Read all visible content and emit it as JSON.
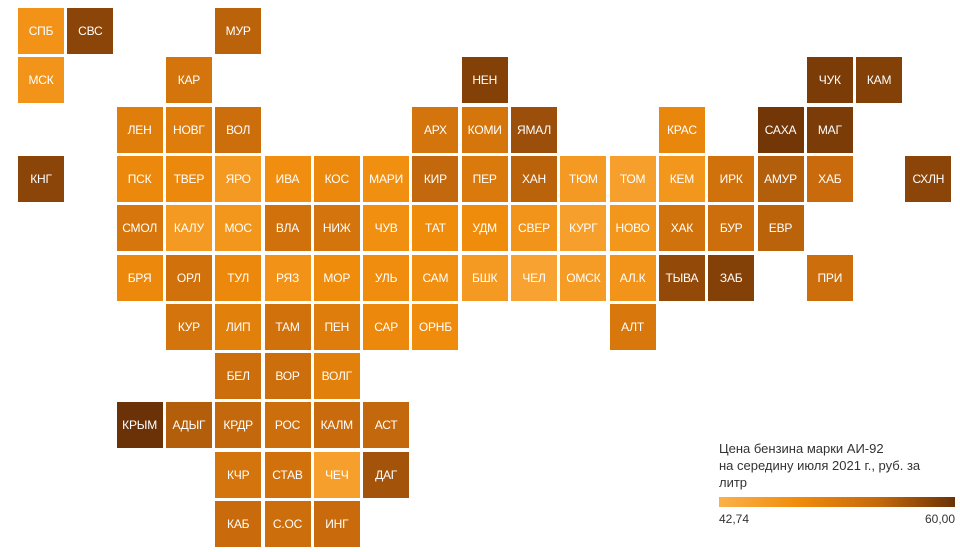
{
  "chart_data": {
    "type": "tile-grid-map",
    "value_label": "Цена бензина марки АИ-92 на середину июля 2021 г., руб. за литр",
    "scale": {
      "min": 42.74,
      "max": 60.0,
      "min_label": "42,74",
      "max_label": "60,00",
      "colors": [
        "#fbb149",
        "#f08c0c",
        "#c76a0c",
        "#6b3207"
      ]
    },
    "regions": [
      {
        "label": "СПБ",
        "col": 0,
        "row": 0,
        "value": 47.5
      },
      {
        "label": "СВС",
        "col": 1,
        "row": 0,
        "value": 58.0
      },
      {
        "label": "МУР",
        "col": 4,
        "row": 0,
        "value": 55.0
      },
      {
        "label": "МСК",
        "col": 0,
        "row": 1,
        "value": 47.3
      },
      {
        "label": "КАР",
        "col": 3,
        "row": 1,
        "value": 52.5
      },
      {
        "label": "НЕН",
        "col": 9,
        "row": 1,
        "value": 58.5
      },
      {
        "label": "ЧУК",
        "col": 16,
        "row": 1,
        "value": 59.0
      },
      {
        "label": "КАМ",
        "col": 17,
        "row": 1,
        "value": 58.5
      },
      {
        "label": "ЛЕН",
        "col": 2,
        "row": 2,
        "value": 50.8
      },
      {
        "label": "НОВГ",
        "col": 3,
        "row": 2,
        "value": 51.0
      },
      {
        "label": "ВОЛ",
        "col": 4,
        "row": 2,
        "value": 53.5
      },
      {
        "label": "АРХ",
        "col": 8,
        "row": 2,
        "value": 52.5
      },
      {
        "label": "КОМИ",
        "col": 9,
        "row": 2,
        "value": 52.3
      },
      {
        "label": "ЯМАЛ",
        "col": 10,
        "row": 2,
        "value": 57.0
      },
      {
        "label": "КРАС",
        "col": 13,
        "row": 2,
        "value": 49.5
      },
      {
        "label": "САХА",
        "col": 15,
        "row": 2,
        "value": 59.5
      },
      {
        "label": "МАГ",
        "col": 16,
        "row": 2,
        "value": 59.0
      },
      {
        "label": "КНГ",
        "col": 0,
        "row": 3,
        "value": 58.0
      },
      {
        "label": "ПСК",
        "col": 2,
        "row": 3,
        "value": 49.0
      },
      {
        "label": "ТВЕР",
        "col": 3,
        "row": 3,
        "value": 49.0
      },
      {
        "label": "ЯРО",
        "col": 4,
        "row": 3,
        "value": 46.5
      },
      {
        "label": "ИВА",
        "col": 5,
        "row": 3,
        "value": 48.2
      },
      {
        "label": "КОС",
        "col": 6,
        "row": 3,
        "value": 49.0
      },
      {
        "label": "МАРИ",
        "col": 7,
        "row": 3,
        "value": 48.0
      },
      {
        "label": "КИР",
        "col": 8,
        "row": 3,
        "value": 54.5
      },
      {
        "label": "ПЕР",
        "col": 9,
        "row": 3,
        "value": 51.5
      },
      {
        "label": "ХАН",
        "col": 10,
        "row": 3,
        "value": 55.0
      },
      {
        "label": "ТЮМ",
        "col": 11,
        "row": 3,
        "value": 46.3
      },
      {
        "label": "ТОМ",
        "col": 12,
        "row": 3,
        "value": 45.5
      },
      {
        "label": "КЕМ",
        "col": 13,
        "row": 3,
        "value": 47.0
      },
      {
        "label": "ИРК",
        "col": 14,
        "row": 3,
        "value": 53.0
      },
      {
        "label": "АМУР",
        "col": 15,
        "row": 3,
        "value": 55.5
      },
      {
        "label": "ХАБ",
        "col": 16,
        "row": 3,
        "value": 54.0
      },
      {
        "label": "СХЛН",
        "col": 18,
        "row": 3,
        "value": 58.0
      },
      {
        "label": "СМОЛ",
        "col": 2,
        "row": 4,
        "value": 52.2
      },
      {
        "label": "КАЛУ",
        "col": 3,
        "row": 4,
        "value": 46.5
      },
      {
        "label": "МОС",
        "col": 4,
        "row": 4,
        "value": 47.0
      },
      {
        "label": "ВЛА",
        "col": 5,
        "row": 4,
        "value": 53.0
      },
      {
        "label": "НИЖ",
        "col": 6,
        "row": 4,
        "value": 52.5
      },
      {
        "label": "ЧУВ",
        "col": 7,
        "row": 4,
        "value": 48.0
      },
      {
        "label": "ТАТ",
        "col": 8,
        "row": 4,
        "value": 48.5
      },
      {
        "label": "УДМ",
        "col": 9,
        "row": 4,
        "value": 48.5
      },
      {
        "label": "СВЕР",
        "col": 10,
        "row": 4,
        "value": 47.2
      },
      {
        "label": "КУРГ",
        "col": 11,
        "row": 4,
        "value": 45.5
      },
      {
        "label": "НОВО",
        "col": 12,
        "row": 4,
        "value": 47.0
      },
      {
        "label": "ХАК",
        "col": 13,
        "row": 4,
        "value": 52.8
      },
      {
        "label": "БУР",
        "col": 14,
        "row": 4,
        "value": 53.5
      },
      {
        "label": "ЕВР",
        "col": 15,
        "row": 4,
        "value": 55.0
      },
      {
        "label": "БРЯ",
        "col": 2,
        "row": 5,
        "value": 49.0
      },
      {
        "label": "ОРЛ",
        "col": 3,
        "row": 5,
        "value": 53.0
      },
      {
        "label": "ТУЛ",
        "col": 4,
        "row": 5,
        "value": 49.0
      },
      {
        "label": "РЯЗ",
        "col": 5,
        "row": 5,
        "value": 47.5
      },
      {
        "label": "МОР",
        "col": 6,
        "row": 5,
        "value": 48.5
      },
      {
        "label": "УЛЬ",
        "col": 7,
        "row": 5,
        "value": 48.3
      },
      {
        "label": "САМ",
        "col": 8,
        "row": 5,
        "value": 48.0
      },
      {
        "label": "БШК",
        "col": 9,
        "row": 5,
        "value": 46.5
      },
      {
        "label": "ЧЕЛ",
        "col": 10,
        "row": 5,
        "value": 45.0
      },
      {
        "label": "ОМСК",
        "col": 11,
        "row": 5,
        "value": 46.0
      },
      {
        "label": "АЛ.К",
        "col": 12,
        "row": 5,
        "value": 47.2
      },
      {
        "label": "ТЫВА",
        "col": 13,
        "row": 5,
        "value": 57.5
      },
      {
        "label": "ЗАБ",
        "col": 14,
        "row": 5,
        "value": 58.5
      },
      {
        "label": "ПРИ",
        "col": 16,
        "row": 5,
        "value": 53.5
      },
      {
        "label": "КУР",
        "col": 3,
        "row": 6,
        "value": 52.5
      },
      {
        "label": "ЛИП",
        "col": 4,
        "row": 6,
        "value": 50.5
      },
      {
        "label": "ТАМ",
        "col": 5,
        "row": 6,
        "value": 53.0
      },
      {
        "label": "ПЕН",
        "col": 6,
        "row": 6,
        "value": 51.0
      },
      {
        "label": "САР",
        "col": 7,
        "row": 6,
        "value": 49.0
      },
      {
        "label": "ОРНБ",
        "col": 8,
        "row": 6,
        "value": 48.5
      },
      {
        "label": "АЛТ",
        "col": 12,
        "row": 6,
        "value": 52.0
      },
      {
        "label": "БЕЛ",
        "col": 4,
        "row": 7,
        "value": 53.5
      },
      {
        "label": "ВОР",
        "col": 5,
        "row": 7,
        "value": 53.5
      },
      {
        "label": "ВОЛГ",
        "col": 6,
        "row": 7,
        "value": 50.5
      },
      {
        "label": "КРЫМ",
        "col": 2,
        "row": 8,
        "value": 60.0
      },
      {
        "label": "АДЫГ",
        "col": 3,
        "row": 8,
        "value": 55.5
      },
      {
        "label": "КРДР",
        "col": 4,
        "row": 8,
        "value": 54.5
      },
      {
        "label": "РОС",
        "col": 5,
        "row": 8,
        "value": 53.5
      },
      {
        "label": "КАЛМ",
        "col": 6,
        "row": 8,
        "value": 54.0
      },
      {
        "label": "АСТ",
        "col": 7,
        "row": 8,
        "value": 54.5
      },
      {
        "label": "КЧР",
        "col": 4,
        "row": 9,
        "value": 52.5
      },
      {
        "label": "СТАВ",
        "col": 5,
        "row": 9,
        "value": 53.0
      },
      {
        "label": "ЧЕЧ",
        "col": 6,
        "row": 9,
        "value": 45.5
      },
      {
        "label": "ДАГ",
        "col": 7,
        "row": 9,
        "value": 56.5
      },
      {
        "label": "КАБ",
        "col": 4,
        "row": 10,
        "value": 54.0
      },
      {
        "label": "С.ОС",
        "col": 5,
        "row": 10,
        "value": 53.5
      },
      {
        "label": "ИНГ",
        "col": 6,
        "row": 10,
        "value": 54.0
      }
    ]
  },
  "legend": {
    "title_line1": "Цена бензина марки АИ-92",
    "title_line2": "на середину июля 2021 г., руб. за",
    "title_line3": "литр",
    "min_label": "42,74",
    "max_label": "60,00"
  }
}
